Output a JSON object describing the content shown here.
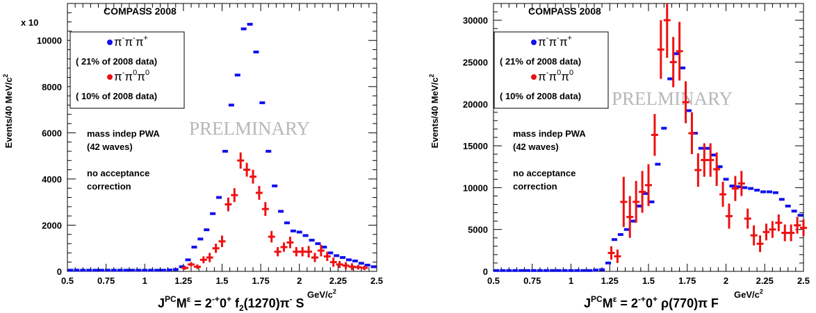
{
  "chart_data": [
    {
      "type": "scatter",
      "experiment": "COMPASS 2008",
      "multiplier": "x 10",
      "ylabel": "Events/40 MeV/c",
      "ylabel_sup": "2",
      "xlabel_prefix": "J",
      "xlabel_sup1": "PC",
      "xlabel_mid": "M",
      "xlabel_sup2": "ε",
      "xlabel_main": " = 2",
      "xlabel_sup3": "-+",
      "xlabel_tail": "0",
      "xlabel_sup4": "+",
      "xlabel_wave": " f",
      "xlabel_sub": "2",
      "xlabel_wave2": "(1270)π",
      "xlabel_sup5": "-",
      "xlabel_wave3": " S",
      "xunit": "GeV/c",
      "xunit_sup": "2",
      "xlim": [
        0.5,
        2.5
      ],
      "ylim": [
        0,
        11600
      ],
      "xticks": [
        "0.5",
        "0.75",
        "1",
        "1.25",
        "1.5",
        "1.75",
        "2",
        "2.25",
        "2.5"
      ],
      "yticks": [
        "0",
        "2000",
        "4000",
        "6000",
        "8000",
        "10000"
      ],
      "ytick_values": [
        0,
        2000,
        4000,
        6000,
        8000,
        10000
      ],
      "watermark": "PRELMINARY",
      "annotation": [
        "mass indep PWA",
        "(42 waves)",
        "no acceptance",
        "correction"
      ],
      "legend": [
        {
          "label_main": "π",
          "label_sup1": "-",
          "label_mid": "π",
          "label_sup2": "-",
          "label_end": "π",
          "label_sup3": "+",
          "note": "( 21% of 2008 data)",
          "color": "#1010ee"
        },
        {
          "label_main": "π",
          "label_sup1": "-",
          "label_mid": "π",
          "label_sup2": "0",
          "label_end": "π",
          "label_sup3": "0",
          "note": "( 10% of 2008 data)",
          "color": "#ee1010"
        }
      ],
      "series": [
        {
          "color": "#1010ee",
          "marker": "dash",
          "x": [
            0.52,
            0.56,
            0.6,
            0.64,
            0.68,
            0.72,
            0.76,
            0.8,
            0.84,
            0.88,
            0.92,
            0.96,
            1.0,
            1.04,
            1.08,
            1.12,
            1.16,
            1.2,
            1.24,
            1.28,
            1.32,
            1.36,
            1.4,
            1.44,
            1.48,
            1.52,
            1.56,
            1.6,
            1.64,
            1.68,
            1.72,
            1.76,
            1.8,
            1.84,
            1.88,
            1.92,
            1.96,
            2.0,
            2.04,
            2.08,
            2.12,
            2.16,
            2.2,
            2.24,
            2.28,
            2.32,
            2.36,
            2.4,
            2.44,
            2.48
          ],
          "y": [
            50,
            50,
            50,
            50,
            50,
            50,
            50,
            50,
            50,
            50,
            50,
            50,
            50,
            50,
            50,
            50,
            60,
            80,
            200,
            500,
            1050,
            1400,
            1800,
            2500,
            3200,
            5200,
            7200,
            8500,
            10500,
            10700,
            9500,
            7300,
            5200,
            3700,
            2600,
            2100,
            1750,
            1700,
            1550,
            1350,
            1200,
            1050,
            800,
            680,
            600,
            500,
            450,
            350,
            270,
            200
          ],
          "yerr": [
            0,
            0,
            0,
            0,
            0,
            0,
            0,
            0,
            0,
            0,
            0,
            0,
            0,
            0,
            0,
            0,
            0,
            0,
            0,
            0,
            0,
            0,
            0,
            0,
            0,
            0,
            0,
            0,
            0,
            0,
            0,
            0,
            0,
            0,
            0,
            0,
            0,
            0,
            0,
            0,
            0,
            0,
            0,
            0,
            0,
            0,
            0,
            0,
            0,
            0
          ]
        },
        {
          "color": "#ee1010",
          "marker": "cross",
          "x": [
            1.26,
            1.3,
            1.34,
            1.38,
            1.42,
            1.46,
            1.5,
            1.54,
            1.58,
            1.62,
            1.66,
            1.7,
            1.74,
            1.78,
            1.82,
            1.86,
            1.9,
            1.94,
            1.98,
            2.02,
            2.06,
            2.1,
            2.14,
            2.18,
            2.22,
            2.26,
            2.3,
            2.34,
            2.38,
            2.42
          ],
          "y": [
            150,
            300,
            200,
            500,
            600,
            1000,
            1300,
            2900,
            3300,
            4800,
            4400,
            4100,
            3400,
            2700,
            1500,
            850,
            1050,
            1250,
            850,
            850,
            850,
            600,
            900,
            650,
            400,
            300,
            250,
            200,
            180,
            150
          ],
          "yerr": [
            80,
            100,
            100,
            150,
            200,
            200,
            250,
            300,
            300,
            350,
            300,
            300,
            300,
            300,
            250,
            200,
            200,
            250,
            200,
            200,
            250,
            200,
            250,
            200,
            200,
            150,
            150,
            150,
            100,
            100
          ]
        }
      ]
    },
    {
      "type": "scatter",
      "experiment": "COMPASS 2008",
      "ylabel": "Events/40 MeV/c",
      "ylabel_sup": "2",
      "xlabel_prefix": "J",
      "xlabel_sup1": "PC",
      "xlabel_mid": "M",
      "xlabel_sup2": "ε",
      "xlabel_main": " = 2",
      "xlabel_sup3": "-+",
      "xlabel_tail": "0",
      "xlabel_sup4": "+",
      "xlabel_wave": " ρ(770)π F",
      "xunit": "GeV/c",
      "xunit_sup": "2",
      "xlim": [
        0.5,
        2.5
      ],
      "ylim": [
        0,
        32000
      ],
      "xticks": [
        "0.5",
        "0.75",
        "1",
        "1.25",
        "1.5",
        "1.75",
        "2",
        "2.25",
        "2.5"
      ],
      "yticks": [
        "0",
        "5000",
        "10000",
        "15000",
        "20000",
        "25000",
        "30000"
      ],
      "ytick_values": [
        0,
        5000,
        10000,
        15000,
        20000,
        25000,
        30000
      ],
      "watermark": "PRELMINARY",
      "annotation": [
        "mass indep PWA",
        "(42 waves)",
        "no acceptance",
        "correction"
      ],
      "legend": [
        {
          "label_main": "π",
          "label_sup1": "-",
          "label_mid": "π",
          "label_sup2": "-",
          "label_end": "π",
          "label_sup3": "+",
          "note": "( 21% of 2008 data)",
          "color": "#1010ee"
        },
        {
          "label_main": "π",
          "label_sup1": "-",
          "label_mid": "π",
          "label_sup2": "0",
          "label_end": "π",
          "label_sup3": "0",
          "note": "( 10% of 2008 data)",
          "color": "#ee1010"
        }
      ],
      "series": [
        {
          "color": "#1010ee",
          "marker": "dash",
          "x": [
            0.52,
            0.56,
            0.6,
            0.64,
            0.68,
            0.72,
            0.76,
            0.8,
            0.84,
            0.88,
            0.92,
            0.96,
            1.0,
            1.04,
            1.08,
            1.12,
            1.16,
            1.2,
            1.24,
            1.28,
            1.32,
            1.36,
            1.4,
            1.44,
            1.48,
            1.52,
            1.56,
            1.6,
            1.64,
            1.68,
            1.72,
            1.76,
            1.8,
            1.84,
            1.88,
            1.92,
            1.96,
            2.0,
            2.04,
            2.08,
            2.12,
            2.16,
            2.2,
            2.24,
            2.28,
            2.32,
            2.36,
            2.4,
            2.44,
            2.48
          ],
          "y": [
            100,
            100,
            100,
            100,
            100,
            100,
            100,
            100,
            100,
            100,
            100,
            100,
            100,
            100,
            100,
            100,
            150,
            200,
            1000,
            3800,
            4400,
            5000,
            6000,
            7800,
            9300,
            8300,
            12800,
            17100,
            23000,
            26000,
            24300,
            19200,
            16500,
            14700,
            14700,
            13900,
            12500,
            11000,
            10200,
            10100,
            10000,
            9900,
            9700,
            9500,
            9500,
            9400,
            8600,
            7800,
            7200,
            6700
          ],
          "yerr": [
            0,
            0,
            0,
            0,
            0,
            0,
            0,
            0,
            0,
            0,
            0,
            0,
            0,
            0,
            0,
            0,
            0,
            0,
            0,
            0,
            0,
            0,
            0,
            0,
            0,
            0,
            0,
            0,
            0,
            0,
            0,
            0,
            0,
            0,
            0,
            0,
            0,
            0,
            0,
            0,
            0,
            0,
            0,
            0,
            0,
            0,
            0,
            0,
            0,
            0
          ]
        },
        {
          "color": "#ee1010",
          "marker": "cross",
          "x": [
            1.26,
            1.3,
            1.34,
            1.38,
            1.42,
            1.46,
            1.5,
            1.54,
            1.58,
            1.62,
            1.66,
            1.7,
            1.74,
            1.78,
            1.82,
            1.86,
            1.9,
            1.94,
            1.98,
            2.02,
            2.06,
            2.1,
            2.14,
            2.18,
            2.22,
            2.26,
            2.3,
            2.34,
            2.38,
            2.42,
            2.46,
            2.5
          ],
          "y": [
            2200,
            1800,
            8300,
            6500,
            8300,
            9500,
            10300,
            16300,
            26500,
            30000,
            25000,
            26300,
            20200,
            16500,
            12100,
            13300,
            13300,
            12200,
            9200,
            6600,
            9900,
            10500,
            6300,
            4300,
            3300,
            4700,
            5000,
            5800,
            4600,
            4600,
            5500,
            5200
          ],
          "yerr": [
            800,
            800,
            3000,
            2500,
            2500,
            2500,
            2500,
            2500,
            3500,
            4500,
            3000,
            3500,
            2500,
            2500,
            2000,
            2000,
            2000,
            2000,
            1500,
            1500,
            1500,
            1500,
            1200,
            1200,
            1000,
            1000,
            1000,
            1000,
            1000,
            1000,
            1000,
            1000
          ]
        }
      ]
    }
  ]
}
